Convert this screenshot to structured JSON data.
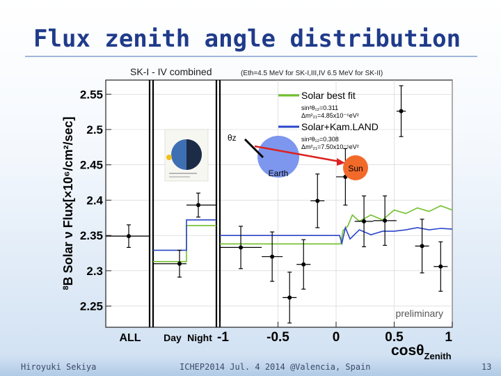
{
  "slide": {
    "title": "Flux zenith angle distribution",
    "footer_left": "Hiroyuki Sekiya",
    "footer_center": "ICHEP2014  Jul. 4 2014  @Valencia, Spain",
    "page_number": "13"
  },
  "chart_data": {
    "type": "scatter",
    "title_main": "SK-I - IV combined",
    "title_note": "(Eth=4.5 MeV for SK-I,III,IV  6.5 MeV for SK-II)",
    "ylabel_prefix": "8",
    "ylabel": "B Solar ν Flux[×10⁶/cm²/sec]",
    "xlabel": "cosθ",
    "xlabel_sub": "Zenith",
    "ylim": [
      2.22,
      2.57
    ],
    "yticks": [
      "2.25",
      "2.3",
      "2.35",
      "2.4",
      "2.45",
      "2.5",
      "2.55"
    ],
    "xlim": [
      -1,
      1
    ],
    "xticks": [
      "-1",
      "-0.5",
      "0",
      "0.5",
      "1"
    ],
    "category_labels": [
      "ALL",
      "Day",
      "Night"
    ],
    "categories": [
      {
        "name": "ALL",
        "value": 2.349,
        "error": 0.016
      },
      {
        "name": "Day",
        "value": 2.31,
        "error": 0.019
      },
      {
        "name": "Night",
        "value": 2.393,
        "error": 0.017
      }
    ],
    "zenith_points": [
      {
        "x": -0.82,
        "xerr": 0.18,
        "y": 2.333,
        "yerr": 0.03
      },
      {
        "x": -0.55,
        "xerr": 0.09,
        "y": 2.32,
        "yerr": 0.035
      },
      {
        "x": -0.4,
        "xerr": 0.06,
        "y": 2.262,
        "yerr": 0.036
      },
      {
        "x": -0.28,
        "xerr": 0.06,
        "y": 2.309,
        "yerr": 0.035
      },
      {
        "x": -0.16,
        "xerr": 0.06,
        "y": 2.399,
        "yerr": 0.038
      },
      {
        "x": 0.08,
        "xerr": 0.08,
        "y": 2.433,
        "yerr": 0.04
      },
      {
        "x": 0.24,
        "xerr": 0.08,
        "y": 2.37,
        "yerr": 0.036
      },
      {
        "x": 0.42,
        "xerr": 0.1,
        "y": 2.371,
        "yerr": 0.035
      },
      {
        "x": 0.56,
        "xerr": 0.04,
        "y": 2.526,
        "yerr": 0.036
      },
      {
        "x": 0.74,
        "xerr": 0.06,
        "y": 2.335,
        "yerr": 0.038
      },
      {
        "x": 0.9,
        "xerr": 0.06,
        "y": 2.306,
        "yerr": 0.035
      }
    ],
    "series": [
      {
        "name": "Solar best fit",
        "color": "#6fbf2a",
        "params": [
          "sin²θ₁₂=0.311",
          "Δm²₂₁=4.85x10⁻⁵eV²"
        ],
        "day_value": 2.313,
        "night_value": 2.364,
        "x": [
          -1,
          0.04,
          0.06,
          0.1,
          0.14,
          0.2,
          0.3,
          0.4,
          0.5,
          0.6,
          0.7,
          0.8,
          0.9,
          1.0
        ],
        "values": [
          2.338,
          2.338,
          2.357,
          2.363,
          2.379,
          2.37,
          2.379,
          2.372,
          2.386,
          2.381,
          2.389,
          2.384,
          2.392,
          2.386
        ]
      },
      {
        "name": "Solar+Kam.LAND",
        "color": "#2a45c8",
        "params": [
          "sin²θ₁₂=0.308",
          "Δm²₂₁=7.50x10⁻⁵eV²"
        ],
        "day_value": 2.329,
        "night_value": 2.372,
        "x": [
          -1,
          0.03,
          0.05,
          0.08,
          0.12,
          0.2,
          0.3,
          0.4,
          0.5,
          0.6,
          0.7,
          0.8,
          0.9,
          1.0
        ],
        "values": [
          2.35,
          2.35,
          2.339,
          2.361,
          2.345,
          2.358,
          2.351,
          2.356,
          2.356,
          2.358,
          2.361,
          2.358,
          2.36,
          2.359
        ]
      }
    ],
    "inset_labels": {
      "theta": "θz",
      "earth": "Earth",
      "sun": "Sun"
    },
    "annotation": "preliminary"
  }
}
